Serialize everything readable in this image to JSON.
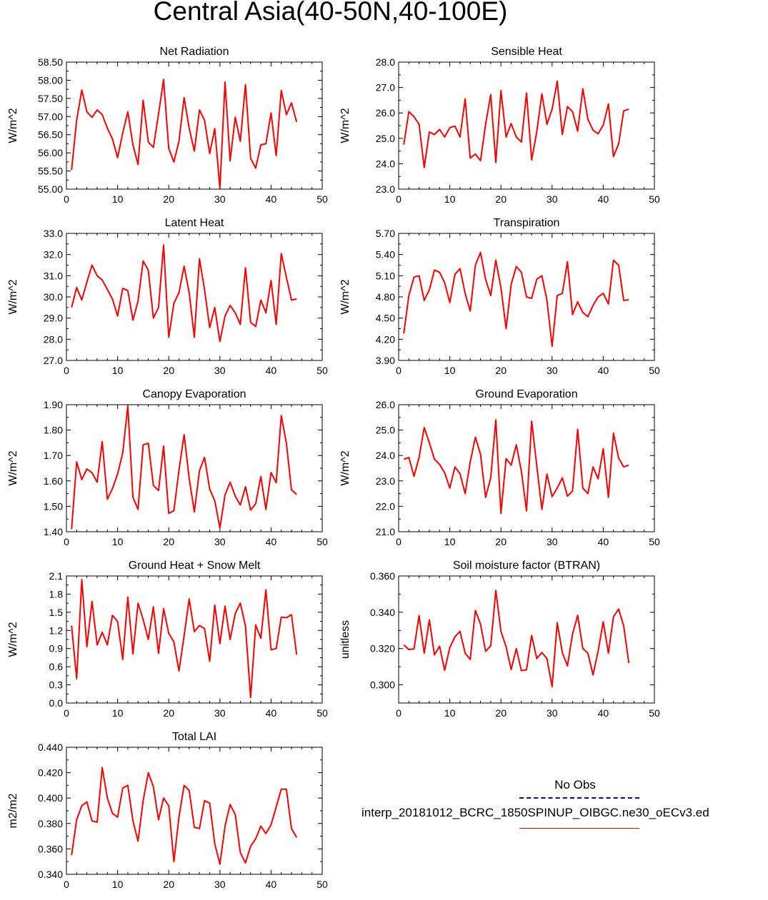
{
  "page_title": "Central Asia(40-50N,40-100E)",
  "legend": {
    "obs_label": "No Obs",
    "model_label": "interp_20181012_BCRC_1850SPINUP_OIBGC.ne30_oECv3.ed",
    "obs_color": "#0000cc",
    "model_color": "#ff0000"
  },
  "chart_data": [
    {
      "type": "line",
      "title": "Net Radiation",
      "ylabel": "W/m^2",
      "xlim": [
        0,
        50
      ],
      "ylim": [
        55.0,
        58.5
      ],
      "xticks": [
        "0",
        "10",
        "20",
        "30",
        "40",
        "50"
      ],
      "yticks": [
        "55.00",
        "55.50",
        "56.00",
        "56.50",
        "57.00",
        "57.50",
        "58.00",
        "58.50"
      ],
      "series": [
        {
          "color": "#ff0000",
          "values": [
            55.53,
            56.9,
            57.73,
            57.13,
            56.98,
            57.18,
            57.05,
            56.68,
            56.38,
            55.87,
            56.55,
            57.13,
            56.22,
            55.68,
            57.45,
            56.3,
            56.15,
            57.07,
            58.02,
            56.12,
            55.75,
            56.32,
            57.52,
            56.68,
            56.05,
            57.18,
            56.9,
            55.98,
            56.67,
            55.02,
            57.95,
            55.78,
            56.98,
            56.32,
            57.88,
            55.85,
            55.58,
            56.22,
            56.25,
            57.1,
            55.92,
            57.72,
            57.05,
            57.38,
            56.85
          ]
        }
      ]
    },
    {
      "type": "line",
      "title": "Sensible Heat",
      "ylabel": "W/m^2",
      "xlim": [
        0,
        50
      ],
      "ylim": [
        23.0,
        28.0
      ],
      "xticks": [
        "0",
        "10",
        "20",
        "30",
        "40",
        "50"
      ],
      "yticks": [
        "23.0",
        "24.0",
        "25.0",
        "26.0",
        "27.0",
        "28.0"
      ],
      "series": [
        {
          "color": "#ff0000",
          "values": [
            24.75,
            26.05,
            25.85,
            25.55,
            23.85,
            25.25,
            25.15,
            25.35,
            25.05,
            25.42,
            25.48,
            25.05,
            26.55,
            24.22,
            24.38,
            24.12,
            25.55,
            26.72,
            24.05,
            26.88,
            25.05,
            25.58,
            25.05,
            24.85,
            26.78,
            24.15,
            25.25,
            26.75,
            25.55,
            26.15,
            27.25,
            25.15,
            26.25,
            26.05,
            25.28,
            26.95,
            25.75,
            25.32,
            25.18,
            25.52,
            26.35,
            24.28,
            24.78,
            26.08,
            26.15
          ]
        }
      ]
    },
    {
      "type": "line",
      "title": "Latent Heat",
      "ylabel": "W/m^2",
      "xlim": [
        0,
        50
      ],
      "ylim": [
        27.0,
        33.0
      ],
      "xticks": [
        "0",
        "10",
        "20",
        "30",
        "40",
        "50"
      ],
      "yticks": [
        "27.0",
        "28.0",
        "29.0",
        "30.0",
        "31.0",
        "32.0",
        "33.0"
      ],
      "series": [
        {
          "color": "#ff0000",
          "values": [
            29.5,
            30.45,
            29.85,
            30.7,
            31.5,
            31.0,
            30.8,
            30.35,
            29.9,
            29.1,
            30.4,
            30.3,
            28.9,
            29.8,
            31.7,
            31.25,
            29.0,
            29.5,
            32.45,
            28.1,
            29.7,
            30.2,
            31.45,
            30.2,
            28.1,
            31.8,
            30.35,
            28.55,
            29.5,
            27.9,
            29.1,
            29.6,
            29.25,
            28.7,
            31.38,
            28.8,
            28.6,
            29.85,
            29.25,
            30.78,
            28.7,
            32.05,
            30.92,
            29.85,
            29.9
          ]
        }
      ]
    },
    {
      "type": "line",
      "title": "Transpiration",
      "ylabel": "W/m^2",
      "xlim": [
        0,
        50
      ],
      "ylim": [
        3.9,
        5.7
      ],
      "xticks": [
        "0",
        "10",
        "20",
        "30",
        "40",
        "50"
      ],
      "yticks": [
        "3.90",
        "4.20",
        "4.50",
        "4.80",
        "5.10",
        "5.40",
        "5.70"
      ],
      "series": [
        {
          "color": "#ff0000",
          "values": [
            4.28,
            4.82,
            5.08,
            5.1,
            4.75,
            4.9,
            5.18,
            5.15,
            5.0,
            4.72,
            5.12,
            5.2,
            4.85,
            4.6,
            5.25,
            5.43,
            5.05,
            4.82,
            5.32,
            4.93,
            4.35,
            4.98,
            5.23,
            5.15,
            4.8,
            4.78,
            5.05,
            5.1,
            4.75,
            4.1,
            4.82,
            4.85,
            5.3,
            4.55,
            4.73,
            4.58,
            4.52,
            4.68,
            4.8,
            4.85,
            4.7,
            5.32,
            5.25,
            4.75,
            4.76
          ]
        }
      ]
    },
    {
      "type": "line",
      "title": "Canopy Evaporation",
      "ylabel": "W/m^2",
      "xlim": [
        0,
        50
      ],
      "ylim": [
        1.4,
        1.9
      ],
      "xticks": [
        "0",
        "10",
        "20",
        "30",
        "40",
        "50"
      ],
      "yticks": [
        "1.40",
        "1.50",
        "1.60",
        "1.70",
        "1.80",
        "1.90"
      ],
      "series": [
        {
          "color": "#ff0000",
          "values": [
            1.41,
            1.675,
            1.605,
            1.647,
            1.632,
            1.595,
            1.755,
            1.528,
            1.57,
            1.627,
            1.71,
            1.895,
            1.535,
            1.488,
            1.742,
            1.748,
            1.582,
            1.562,
            1.737,
            1.472,
            1.483,
            1.642,
            1.782,
            1.61,
            1.478,
            1.64,
            1.693,
            1.568,
            1.522,
            1.415,
            1.545,
            1.595,
            1.54,
            1.505,
            1.577,
            1.485,
            1.51,
            1.617,
            1.488,
            1.633,
            1.593,
            1.857,
            1.748,
            1.565,
            1.547
          ]
        }
      ]
    },
    {
      "type": "line",
      "title": "Ground Evaporation",
      "ylabel": "W/m^2",
      "xlim": [
        0,
        50
      ],
      "ylim": [
        21.0,
        26.0
      ],
      "xticks": [
        "0",
        "10",
        "20",
        "30",
        "40",
        "50"
      ],
      "yticks": [
        "21.0",
        "22.0",
        "23.0",
        "24.0",
        "25.0",
        "26.0"
      ],
      "series": [
        {
          "color": "#ff0000",
          "values": [
            23.85,
            23.92,
            23.18,
            23.92,
            25.1,
            24.5,
            23.85,
            23.65,
            23.32,
            22.72,
            23.55,
            23.28,
            22.5,
            23.75,
            24.72,
            24.05,
            22.35,
            23.12,
            25.4,
            21.72,
            23.88,
            23.62,
            24.42,
            23.38,
            21.82,
            25.35,
            23.6,
            21.88,
            23.27,
            22.38,
            22.72,
            23.12,
            22.4,
            22.6,
            25.03,
            22.72,
            22.5,
            23.55,
            23.08,
            24.27,
            22.35,
            24.88,
            23.9,
            23.55,
            23.62
          ]
        }
      ]
    },
    {
      "type": "line",
      "title": "Ground Heat + Snow Melt",
      "ylabel": "W/m^2",
      "xlim": [
        0,
        50
      ],
      "ylim": [
        0.0,
        2.1
      ],
      "xticks": [
        "0",
        "10",
        "20",
        "30",
        "40",
        "50"
      ],
      "yticks": [
        "0.0",
        "0.3",
        "0.6",
        "0.9",
        "1.2",
        "1.5",
        "1.8",
        "2.1"
      ],
      "series": [
        {
          "color": "#ff0000",
          "values": [
            1.28,
            0.4,
            2.04,
            0.93,
            1.68,
            0.96,
            1.17,
            0.96,
            1.45,
            1.35,
            0.72,
            1.75,
            0.81,
            1.65,
            1.38,
            1.05,
            1.59,
            0.82,
            1.56,
            1.15,
            1.01,
            0.53,
            1.11,
            1.72,
            1.18,
            1.28,
            1.23,
            0.69,
            1.62,
            0.98,
            1.6,
            1.05,
            1.48,
            1.65,
            1.27,
            0.09,
            1.29,
            1.07,
            1.87,
            0.88,
            0.9,
            1.42,
            1.41,
            1.46,
            0.8
          ]
        }
      ]
    },
    {
      "type": "line",
      "title": "Soil moisture factor (BTRAN)",
      "ylabel": "unitless",
      "xlim": [
        0,
        50
      ],
      "ylim": [
        0.29,
        0.36
      ],
      "xticks": [
        "0",
        "10",
        "20",
        "30",
        "40",
        "50"
      ],
      "yticks": [
        "0.300",
        "0.320",
        "0.340",
        "0.360"
      ],
      "series": [
        {
          "color": "#ff0000",
          "values": [
            0.322,
            0.3195,
            0.3198,
            0.3382,
            0.3175,
            0.3358,
            0.3165,
            0.3213,
            0.308,
            0.3205,
            0.3265,
            0.3295,
            0.3175,
            0.314,
            0.341,
            0.3335,
            0.3185,
            0.3215,
            0.352,
            0.3295,
            0.321,
            0.3085,
            0.32,
            0.3078,
            0.3083,
            0.3272,
            0.3145,
            0.3178,
            0.3145,
            0.299,
            0.3343,
            0.3178,
            0.3105,
            0.328,
            0.3383,
            0.32,
            0.3175,
            0.3055,
            0.3185,
            0.3348,
            0.3175,
            0.3375,
            0.3418,
            0.3325,
            0.312
          ]
        }
      ]
    },
    {
      "type": "line",
      "title": "Total LAI",
      "ylabel": "m2/m2",
      "xlim": [
        0,
        50
      ],
      "ylim": [
        0.34,
        0.44
      ],
      "xticks": [
        "0",
        "10",
        "20",
        "30",
        "40",
        "50"
      ],
      "yticks": [
        "0.340",
        "0.360",
        "0.380",
        "0.400",
        "0.420",
        "0.440"
      ],
      "series": [
        {
          "color": "#ff0000",
          "values": [
            0.355,
            0.383,
            0.394,
            0.397,
            0.382,
            0.381,
            0.424,
            0.4,
            0.388,
            0.385,
            0.408,
            0.41,
            0.382,
            0.366,
            0.398,
            0.42,
            0.409,
            0.383,
            0.4,
            0.394,
            0.35,
            0.385,
            0.41,
            0.406,
            0.377,
            0.376,
            0.398,
            0.396,
            0.364,
            0.348,
            0.378,
            0.395,
            0.387,
            0.357,
            0.349,
            0.362,
            0.368,
            0.378,
            0.372,
            0.379,
            0.393,
            0.407,
            0.407,
            0.376,
            0.369
          ]
        }
      ]
    }
  ]
}
